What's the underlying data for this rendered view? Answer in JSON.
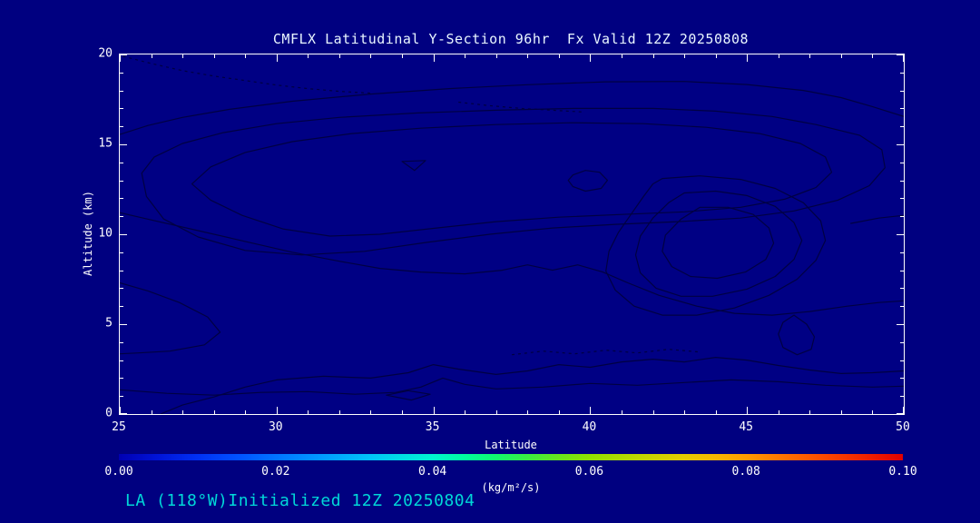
{
  "window": {
    "background_color": "#000080"
  },
  "chart_data": {
    "type": "contour",
    "title": "CMFLX Latitudinal Y-Section 96hr  Fx Valid 12Z 20250808",
    "xlabel": "Latitude",
    "ylabel": "Altitude (km)",
    "annotation": "LA (118°W)Initialized 12Z 20250804",
    "xlim": [
      25,
      50
    ],
    "ylim": [
      0,
      20
    ],
    "x_ticks": [
      "25",
      "30",
      "35",
      "40",
      "45",
      "50"
    ],
    "y_ticks": [
      "0",
      "5",
      "10",
      "15",
      "20"
    ],
    "x_minor_step": 1,
    "y_minor_step": 1,
    "grid": false,
    "colors": {
      "background": "#000080",
      "field": "#000084",
      "contour": "#000042",
      "frame": "#ffffff",
      "text": "#ffffff",
      "title_text": "#e9f6ff",
      "annotation_text": "#00d8d8"
    },
    "colorbar": {
      "min": 0.0,
      "max": 0.1,
      "tick_labels": [
        "0.00",
        "0.02",
        "0.04",
        "0.06",
        "0.08",
        "0.10"
      ],
      "unit": "(kg/m²/s)",
      "orientation": "horizontal",
      "gradient": [
        {
          "pos": 0.0,
          "color": "#0000b2"
        },
        {
          "pos": 0.05,
          "color": "#0014d8"
        },
        {
          "pos": 0.1,
          "color": "#0030f4"
        },
        {
          "pos": 0.15,
          "color": "#0050ff"
        },
        {
          "pos": 0.2,
          "color": "#0074ff"
        },
        {
          "pos": 0.26,
          "color": "#009cff"
        },
        {
          "pos": 0.32,
          "color": "#00c4f8"
        },
        {
          "pos": 0.4,
          "color": "#00f4d0"
        },
        {
          "pos": 0.44,
          "color": "#00fca0"
        },
        {
          "pos": 0.48,
          "color": "#10f870"
        },
        {
          "pos": 0.52,
          "color": "#38ee44"
        },
        {
          "pos": 0.56,
          "color": "#66e61e"
        },
        {
          "pos": 0.6,
          "color": "#90e000"
        },
        {
          "pos": 0.66,
          "color": "#bcd800"
        },
        {
          "pos": 0.72,
          "color": "#e4cc00"
        },
        {
          "pos": 0.76,
          "color": "#f6b800"
        },
        {
          "pos": 0.8,
          "color": "#ff9c00"
        },
        {
          "pos": 0.85,
          "color": "#ff7000"
        },
        {
          "pos": 0.9,
          "color": "#fc4800"
        },
        {
          "pos": 0.95,
          "color": "#f02400"
        },
        {
          "pos": 1.0,
          "color": "#e00000"
        }
      ]
    },
    "contours": [
      {
        "name": "dash-top-left",
        "dash": true,
        "closed": false,
        "points": [
          [
            25.1,
            19.9
          ],
          [
            26,
            19.5
          ],
          [
            27,
            19.1
          ],
          [
            28,
            18.8
          ],
          [
            29,
            18.55
          ],
          [
            30,
            18.3
          ],
          [
            31,
            18.1
          ],
          [
            32,
            17.95
          ],
          [
            33,
            17.85
          ]
        ]
      },
      {
        "name": "dash-upper-mid",
        "dash": true,
        "closed": false,
        "points": [
          [
            35.8,
            17.35
          ],
          [
            36.8,
            17.15
          ],
          [
            37.8,
            17.0
          ],
          [
            38.8,
            16.9
          ],
          [
            39.8,
            16.8
          ]
        ]
      },
      {
        "name": "arc-top",
        "dash": false,
        "closed": false,
        "points": [
          [
            25,
            15.55
          ],
          [
            25.9,
            16.05
          ],
          [
            27,
            16.5
          ],
          [
            28.5,
            16.95
          ],
          [
            30.5,
            17.4
          ],
          [
            33,
            17.8
          ],
          [
            35.5,
            18.1
          ],
          [
            38,
            18.32
          ],
          [
            40.5,
            18.48
          ],
          [
            43,
            18.5
          ],
          [
            45,
            18.33
          ],
          [
            46.8,
            18.0
          ],
          [
            48,
            17.6
          ],
          [
            49,
            17.1
          ],
          [
            50,
            16.55
          ]
        ]
      },
      {
        "name": "loop-outer",
        "dash": false,
        "closed": true,
        "points": [
          [
            25.7,
            13.4
          ],
          [
            26.1,
            14.3
          ],
          [
            27,
            15.05
          ],
          [
            28.3,
            15.65
          ],
          [
            30,
            16.15
          ],
          [
            32,
            16.5
          ],
          [
            34.5,
            16.75
          ],
          [
            37,
            16.9
          ],
          [
            39.5,
            17.0
          ],
          [
            42,
            17.0
          ],
          [
            44,
            16.85
          ],
          [
            45.8,
            16.55
          ],
          [
            47.2,
            16.1
          ],
          [
            48.6,
            15.5
          ],
          [
            49.3,
            14.7
          ],
          [
            49.4,
            13.7
          ],
          [
            48.9,
            12.7
          ],
          [
            47.9,
            11.9
          ],
          [
            46.5,
            11.3
          ],
          [
            44.8,
            10.9
          ],
          [
            42.8,
            10.7
          ],
          [
            40.8,
            10.55
          ],
          [
            38.8,
            10.35
          ],
          [
            36.8,
            10.0
          ],
          [
            34.8,
            9.55
          ],
          [
            32.8,
            9.05
          ],
          [
            30.8,
            8.85
          ],
          [
            29.0,
            9.1
          ],
          [
            27.5,
            9.85
          ],
          [
            26.4,
            10.85
          ],
          [
            25.85,
            12.1
          ]
        ]
      },
      {
        "name": "loop-mid",
        "dash": false,
        "closed": true,
        "points": [
          [
            27.3,
            12.8
          ],
          [
            27.9,
            13.75
          ],
          [
            29.0,
            14.55
          ],
          [
            30.5,
            15.15
          ],
          [
            32.4,
            15.6
          ],
          [
            34.6,
            15.9
          ],
          [
            37.0,
            16.1
          ],
          [
            39.4,
            16.2
          ],
          [
            41.7,
            16.15
          ],
          [
            43.7,
            15.95
          ],
          [
            45.4,
            15.6
          ],
          [
            46.7,
            15.05
          ],
          [
            47.5,
            14.3
          ],
          [
            47.7,
            13.45
          ],
          [
            47.2,
            12.6
          ],
          [
            46.2,
            11.95
          ],
          [
            44.8,
            11.5
          ],
          [
            43.0,
            11.25
          ],
          [
            41.0,
            11.1
          ],
          [
            39.0,
            10.95
          ],
          [
            37.0,
            10.7
          ],
          [
            35.1,
            10.35
          ],
          [
            33.3,
            10.0
          ],
          [
            31.7,
            9.9
          ],
          [
            30.2,
            10.3
          ],
          [
            28.9,
            11.05
          ],
          [
            27.9,
            11.9
          ]
        ]
      },
      {
        "name": "band-low",
        "dash": false,
        "closed": false,
        "points": [
          [
            25,
            11.2
          ],
          [
            26,
            10.8
          ],
          [
            27.5,
            10.2
          ],
          [
            29,
            9.6
          ],
          [
            30.5,
            9.0
          ],
          [
            32,
            8.5
          ],
          [
            33.3,
            8.1
          ],
          [
            34.6,
            7.9
          ],
          [
            36,
            7.8
          ],
          [
            37.2,
            8.0
          ],
          [
            38,
            8.3
          ],
          [
            38.8,
            8.0
          ],
          [
            39.6,
            8.3
          ],
          [
            40.4,
            7.9
          ],
          [
            41.2,
            7.3
          ],
          [
            42.2,
            6.6
          ],
          [
            43.4,
            6.0
          ],
          [
            44.6,
            5.6
          ],
          [
            45.8,
            5.5
          ],
          [
            47,
            5.7
          ],
          [
            48.2,
            6.0
          ],
          [
            49.2,
            6.2
          ],
          [
            50,
            6.3
          ]
        ]
      },
      {
        "name": "ring-outer",
        "dash": false,
        "closed": true,
        "points": [
          [
            42.3,
            13.1
          ],
          [
            43.5,
            13.25
          ],
          [
            44.8,
            13.05
          ],
          [
            45.9,
            12.55
          ],
          [
            46.8,
            11.75
          ],
          [
            47.35,
            10.75
          ],
          [
            47.5,
            9.65
          ],
          [
            47.2,
            8.55
          ],
          [
            46.6,
            7.5
          ],
          [
            45.7,
            6.6
          ],
          [
            44.6,
            5.9
          ],
          [
            43.4,
            5.5
          ],
          [
            42.3,
            5.5
          ],
          [
            41.4,
            6.0
          ],
          [
            40.8,
            6.9
          ],
          [
            40.5,
            7.95
          ],
          [
            40.6,
            9.05
          ],
          [
            40.9,
            10.1
          ],
          [
            41.3,
            11.1
          ],
          [
            41.7,
            12.1
          ],
          [
            42.0,
            12.8
          ]
        ]
      },
      {
        "name": "ring-mid",
        "dash": false,
        "closed": true,
        "points": [
          [
            43.0,
            12.3
          ],
          [
            44.0,
            12.4
          ],
          [
            45.0,
            12.15
          ],
          [
            45.9,
            11.55
          ],
          [
            46.5,
            10.65
          ],
          [
            46.75,
            9.65
          ],
          [
            46.5,
            8.6
          ],
          [
            45.9,
            7.65
          ],
          [
            45.0,
            6.95
          ],
          [
            43.9,
            6.55
          ],
          [
            42.9,
            6.55
          ],
          [
            42.1,
            7.0
          ],
          [
            41.6,
            7.85
          ],
          [
            41.45,
            8.85
          ],
          [
            41.6,
            9.9
          ],
          [
            42.0,
            10.9
          ],
          [
            42.5,
            11.75
          ]
        ]
      },
      {
        "name": "ring-inner",
        "dash": false,
        "closed": true,
        "points": [
          [
            43.5,
            11.5
          ],
          [
            44.4,
            11.5
          ],
          [
            45.2,
            11.1
          ],
          [
            45.7,
            10.35
          ],
          [
            45.85,
            9.5
          ],
          [
            45.6,
            8.6
          ],
          [
            44.95,
            7.9
          ],
          [
            44.05,
            7.55
          ],
          [
            43.2,
            7.65
          ],
          [
            42.6,
            8.2
          ],
          [
            42.3,
            9.05
          ],
          [
            42.4,
            9.95
          ],
          [
            42.9,
            10.85
          ]
        ]
      },
      {
        "name": "loop-small",
        "dash": false,
        "closed": true,
        "points": [
          [
            39.45,
            13.3
          ],
          [
            39.85,
            13.55
          ],
          [
            40.3,
            13.45
          ],
          [
            40.55,
            13.0
          ],
          [
            40.35,
            12.55
          ],
          [
            39.85,
            12.4
          ],
          [
            39.45,
            12.65
          ],
          [
            39.3,
            13.0
          ]
        ]
      },
      {
        "name": "tri-small",
        "dash": false,
        "closed": true,
        "points": [
          [
            34.0,
            14.05
          ],
          [
            34.75,
            14.1
          ],
          [
            34.4,
            13.55
          ]
        ]
      },
      {
        "name": "blob-left",
        "dash": false,
        "closed": false,
        "points": [
          [
            25,
            7.3
          ],
          [
            25.9,
            6.85
          ],
          [
            26.9,
            6.2
          ],
          [
            27.8,
            5.4
          ],
          [
            28.2,
            4.55
          ],
          [
            27.7,
            3.85
          ],
          [
            26.6,
            3.5
          ],
          [
            25.6,
            3.4
          ],
          [
            25,
            3.35
          ]
        ]
      },
      {
        "name": "line-right",
        "dash": false,
        "closed": false,
        "points": [
          [
            48.3,
            10.6
          ],
          [
            49.2,
            10.9
          ],
          [
            50,
            11.05
          ]
        ]
      },
      {
        "name": "line-bottom-1",
        "dash": false,
        "closed": false,
        "points": [
          [
            25,
            1.35
          ],
          [
            26.5,
            1.15
          ],
          [
            28,
            1.05
          ],
          [
            29.5,
            1.2
          ],
          [
            31,
            1.25
          ],
          [
            32.5,
            1.1
          ],
          [
            33.8,
            1.2
          ],
          [
            34.6,
            1.5
          ],
          [
            35.3,
            2.0
          ],
          [
            36.0,
            1.65
          ],
          [
            37,
            1.4
          ],
          [
            38.5,
            1.5
          ],
          [
            40,
            1.7
          ],
          [
            41.5,
            1.6
          ],
          [
            43,
            1.75
          ],
          [
            44.5,
            1.9
          ],
          [
            46,
            1.8
          ],
          [
            47.5,
            1.6
          ],
          [
            49,
            1.5
          ],
          [
            50,
            1.55
          ]
        ]
      },
      {
        "name": "line-bottom-2",
        "dash": false,
        "closed": false,
        "points": [
          [
            26.3,
            0.0
          ],
          [
            27,
            0.5
          ],
          [
            28,
            0.95
          ],
          [
            29,
            1.5
          ],
          [
            30,
            1.9
          ],
          [
            31.5,
            2.1
          ],
          [
            33,
            2.0
          ],
          [
            34.2,
            2.3
          ],
          [
            35,
            2.75
          ],
          [
            35.8,
            2.5
          ],
          [
            37,
            2.2
          ],
          [
            38,
            2.4
          ],
          [
            39,
            2.75
          ],
          [
            40,
            2.6
          ],
          [
            41,
            2.9
          ],
          [
            42,
            3.05
          ],
          [
            43,
            2.9
          ],
          [
            44,
            3.15
          ],
          [
            45,
            3.0
          ],
          [
            46,
            2.7
          ],
          [
            47,
            2.45
          ],
          [
            48,
            2.25
          ],
          [
            49,
            2.3
          ],
          [
            50,
            2.4
          ]
        ]
      },
      {
        "name": "dash-bottom",
        "dash": true,
        "closed": false,
        "points": [
          [
            37.5,
            3.3
          ],
          [
            38.5,
            3.5
          ],
          [
            39.5,
            3.35
          ],
          [
            40.5,
            3.55
          ],
          [
            41.5,
            3.4
          ],
          [
            42.5,
            3.6
          ],
          [
            43.5,
            3.45
          ]
        ]
      },
      {
        "name": "blob-right-small",
        "dash": false,
        "closed": true,
        "points": [
          [
            46.5,
            5.5
          ],
          [
            46.9,
            5.0
          ],
          [
            47.15,
            4.3
          ],
          [
            47.05,
            3.6
          ],
          [
            46.6,
            3.3
          ],
          [
            46.15,
            3.7
          ],
          [
            46.0,
            4.45
          ],
          [
            46.15,
            5.1
          ]
        ]
      },
      {
        "name": "blob-bottom-small",
        "dash": false,
        "closed": true,
        "points": [
          [
            33.5,
            1.05
          ],
          [
            34.2,
            1.3
          ],
          [
            34.9,
            1.1
          ],
          [
            34.3,
            0.78
          ]
        ]
      }
    ]
  }
}
